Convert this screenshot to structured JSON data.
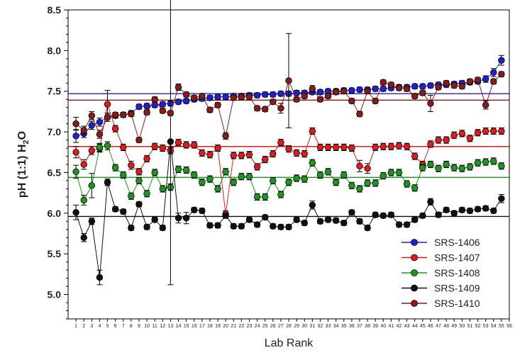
{
  "chart_data": {
    "type": "line",
    "title": "",
    "xlabel": "Lab Rank",
    "ylabel_main": "pH (1:1) H",
    "ylabel_sub": "2",
    "ylabel_tail": "O",
    "xlim": [
      0,
      56
    ],
    "ylim": [
      4.7,
      8.5
    ],
    "yticks": [
      "5.0",
      "5.5",
      "6.0",
      "6.5",
      "7.0",
      "7.5",
      "8.0",
      "8.5"
    ],
    "xticks": [
      "1",
      "2",
      "3",
      "4",
      "5",
      "6",
      "7",
      "8",
      "9",
      "10",
      "11",
      "12",
      "13",
      "14",
      "15",
      "16",
      "17",
      "18",
      "19",
      "20",
      "21",
      "22",
      "23",
      "24",
      "25",
      "26",
      "27",
      "28",
      "29",
      "30",
      "31",
      "32",
      "33",
      "34",
      "35",
      "36",
      "37",
      "38",
      "39",
      "40",
      "41",
      "42",
      "43",
      "44",
      "45",
      "46",
      "47",
      "48",
      "49",
      "50",
      "51",
      "52",
      "53",
      "54",
      "55",
      "56"
    ],
    "legend_position": "bottom-right",
    "series": [
      {
        "name": "SRS-1406",
        "color": "#1f1fd6",
        "median": 7.47,
        "values": [
          6.95,
          6.98,
          7.08,
          7.12,
          7.18,
          7.2,
          7.21,
          7.23,
          7.31,
          7.32,
          7.33,
          7.34,
          7.35,
          7.37,
          7.38,
          7.4,
          7.41,
          7.42,
          7.43,
          7.43,
          7.44,
          7.44,
          7.45,
          7.45,
          7.46,
          7.46,
          7.47,
          7.47,
          7.48,
          7.48,
          7.49,
          7.49,
          7.5,
          7.5,
          7.51,
          7.51,
          7.52,
          7.52,
          7.53,
          7.53,
          7.54,
          7.55,
          7.55,
          7.56,
          7.56,
          7.57,
          7.58,
          7.58,
          7.59,
          7.6,
          7.61,
          7.62,
          7.65,
          7.73,
          7.88
        ],
        "errors": [
          0.08,
          0.05,
          0.05,
          0.05,
          0.05,
          0.03,
          0.03,
          0.03,
          0.03,
          0.03,
          0.03,
          0.03,
          0.03,
          0.03,
          0.03,
          0.03,
          0.03,
          0.03,
          0.03,
          0.03,
          0.03,
          0.03,
          0.03,
          0.03,
          0.03,
          0.03,
          0.03,
          0.03,
          0.03,
          0.03,
          0.03,
          0.03,
          0.03,
          0.03,
          0.03,
          0.03,
          0.03,
          0.03,
          0.03,
          0.03,
          0.03,
          0.03,
          0.03,
          0.03,
          0.03,
          0.03,
          0.03,
          0.03,
          0.03,
          0.03,
          0.03,
          0.03,
          0.04,
          0.05,
          0.06
        ]
      },
      {
        "name": "SRS-1407",
        "color": "#e31a1c",
        "median": 6.82,
        "values": [
          6.75,
          6.6,
          6.77,
          6.8,
          7.34,
          7.04,
          6.81,
          6.59,
          6.51,
          6.67,
          6.82,
          6.8,
          6.77,
          6.87,
          6.84,
          6.84,
          6.74,
          6.72,
          6.8,
          5.99,
          6.71,
          6.71,
          6.72,
          6.57,
          6.66,
          6.73,
          6.87,
          6.79,
          6.74,
          6.73,
          7.01,
          6.81,
          6.81,
          6.81,
          6.81,
          6.8,
          6.58,
          6.55,
          6.81,
          6.82,
          6.82,
          6.83,
          6.82,
          6.7,
          6.6,
          6.85,
          6.9,
          6.9,
          6.96,
          6.98,
          6.92,
          6.99,
          7.01,
          7.01,
          7.01
        ],
        "errors": [
          0.07,
          0.06,
          0.05,
          0.05,
          0.17,
          0.04,
          0.04,
          0.05,
          0.04,
          0.04,
          0.04,
          0.04,
          0.04,
          0.04,
          0.04,
          0.04,
          0.04,
          0.04,
          0.04,
          0.04,
          0.04,
          0.04,
          0.04,
          0.04,
          0.04,
          0.04,
          0.04,
          0.04,
          0.04,
          0.04,
          0.04,
          0.04,
          0.04,
          0.04,
          0.04,
          0.04,
          0.07,
          0.06,
          0.04,
          0.04,
          0.04,
          0.04,
          0.04,
          0.04,
          0.04,
          0.04,
          0.04,
          0.04,
          0.04,
          0.04,
          0.04,
          0.04,
          0.04,
          0.04,
          0.04
        ]
      },
      {
        "name": "SRS-1408",
        "color": "#1a9a1a",
        "median": 6.44,
        "values": [
          6.51,
          6.16,
          6.34,
          6.81,
          6.83,
          6.56,
          6.47,
          6.21,
          6.4,
          6.24,
          6.5,
          6.3,
          6.32,
          6.54,
          6.53,
          6.47,
          6.38,
          6.42,
          6.3,
          6.51,
          6.38,
          6.45,
          6.45,
          6.2,
          6.2,
          6.4,
          6.23,
          6.38,
          6.43,
          6.42,
          6.62,
          6.47,
          6.51,
          6.38,
          6.47,
          6.34,
          6.3,
          6.37,
          6.37,
          6.46,
          6.5,
          6.5,
          6.36,
          6.31,
          6.56,
          6.6,
          6.55,
          6.6,
          6.56,
          6.55,
          6.57,
          6.62,
          6.63,
          6.64,
          6.58
        ],
        "errors": [
          0.08,
          0.06,
          0.15,
          0.05,
          0.05,
          0.04,
          0.04,
          0.04,
          0.04,
          0.04,
          0.04,
          0.04,
          0.04,
          0.04,
          0.04,
          0.04,
          0.04,
          0.04,
          0.04,
          0.04,
          0.04,
          0.04,
          0.04,
          0.04,
          0.04,
          0.04,
          0.04,
          0.04,
          0.04,
          0.04,
          0.04,
          0.04,
          0.04,
          0.04,
          0.04,
          0.04,
          0.04,
          0.04,
          0.04,
          0.04,
          0.04,
          0.04,
          0.04,
          0.04,
          0.04,
          0.04,
          0.04,
          0.04,
          0.04,
          0.04,
          0.04,
          0.04,
          0.04,
          0.04,
          0.04
        ]
      },
      {
        "name": "SRS-1409",
        "color": "#111111",
        "median": 5.96,
        "values": [
          6.01,
          5.7,
          5.9,
          5.21,
          6.38,
          6.05,
          6.02,
          5.82,
          6.11,
          5.83,
          5.92,
          5.82,
          6.88,
          5.94,
          5.94,
          6.04,
          6.03,
          5.85,
          5.85,
          5.97,
          5.84,
          5.84,
          5.92,
          5.86,
          5.95,
          5.84,
          5.83,
          5.83,
          5.92,
          5.88,
          6.1,
          5.9,
          5.92,
          5.91,
          5.88,
          6.01,
          5.9,
          5.82,
          5.98,
          5.97,
          5.98,
          5.86,
          5.86,
          5.92,
          5.97,
          6.14,
          5.98,
          6.04,
          6.0,
          6.04,
          6.03,
          6.05,
          6.06,
          6.03,
          6.18
        ],
        "errors": [
          0.09,
          0.05,
          0.04,
          0.09,
          0.04,
          0.03,
          0.03,
          0.03,
          0.03,
          0.03,
          0.03,
          0.03,
          1.76,
          0.06,
          0.07,
          0.03,
          0.03,
          0.03,
          0.03,
          0.03,
          0.03,
          0.03,
          0.03,
          0.03,
          0.03,
          0.03,
          0.03,
          0.03,
          0.03,
          0.03,
          0.05,
          0.03,
          0.03,
          0.03,
          0.03,
          0.03,
          0.03,
          0.03,
          0.03,
          0.03,
          0.03,
          0.03,
          0.03,
          0.03,
          0.03,
          0.04,
          0.03,
          0.03,
          0.03,
          0.03,
          0.03,
          0.03,
          0.03,
          0.03,
          0.05
        ]
      },
      {
        "name": "SRS-1410",
        "color": "#8b1a1a",
        "median": 7.39,
        "values": [
          7.1,
          7.02,
          7.2,
          6.97,
          7.18,
          7.21,
          7.21,
          7.22,
          6.9,
          7.24,
          7.4,
          7.26,
          7.23,
          7.55,
          7.46,
          7.42,
          7.44,
          7.27,
          7.33,
          6.95,
          7.42,
          7.43,
          7.43,
          7.29,
          7.28,
          7.37,
          7.29,
          7.63,
          7.4,
          7.44,
          7.53,
          7.4,
          7.44,
          7.49,
          7.5,
          7.38,
          7.22,
          7.5,
          7.38,
          7.61,
          7.58,
          7.54,
          7.53,
          7.44,
          7.48,
          7.35,
          7.55,
          7.6,
          7.57,
          7.56,
          7.62,
          7.64,
          7.33,
          7.62,
          7.71
        ],
        "errors": [
          0.08,
          0.05,
          0.05,
          0.05,
          0.05,
          0.03,
          0.03,
          0.03,
          0.03,
          0.03,
          0.03,
          0.03,
          0.03,
          0.04,
          0.03,
          0.03,
          0.03,
          0.03,
          0.03,
          0.04,
          0.03,
          0.03,
          0.03,
          0.03,
          0.03,
          0.03,
          0.06,
          0.58,
          0.03,
          0.03,
          0.04,
          0.03,
          0.03,
          0.03,
          0.03,
          0.03,
          0.03,
          0.03,
          0.03,
          0.03,
          0.03,
          0.03,
          0.03,
          0.03,
          0.03,
          0.1,
          0.03,
          0.03,
          0.03,
          0.03,
          0.03,
          0.03,
          0.05,
          0.03,
          0.03
        ]
      }
    ]
  }
}
